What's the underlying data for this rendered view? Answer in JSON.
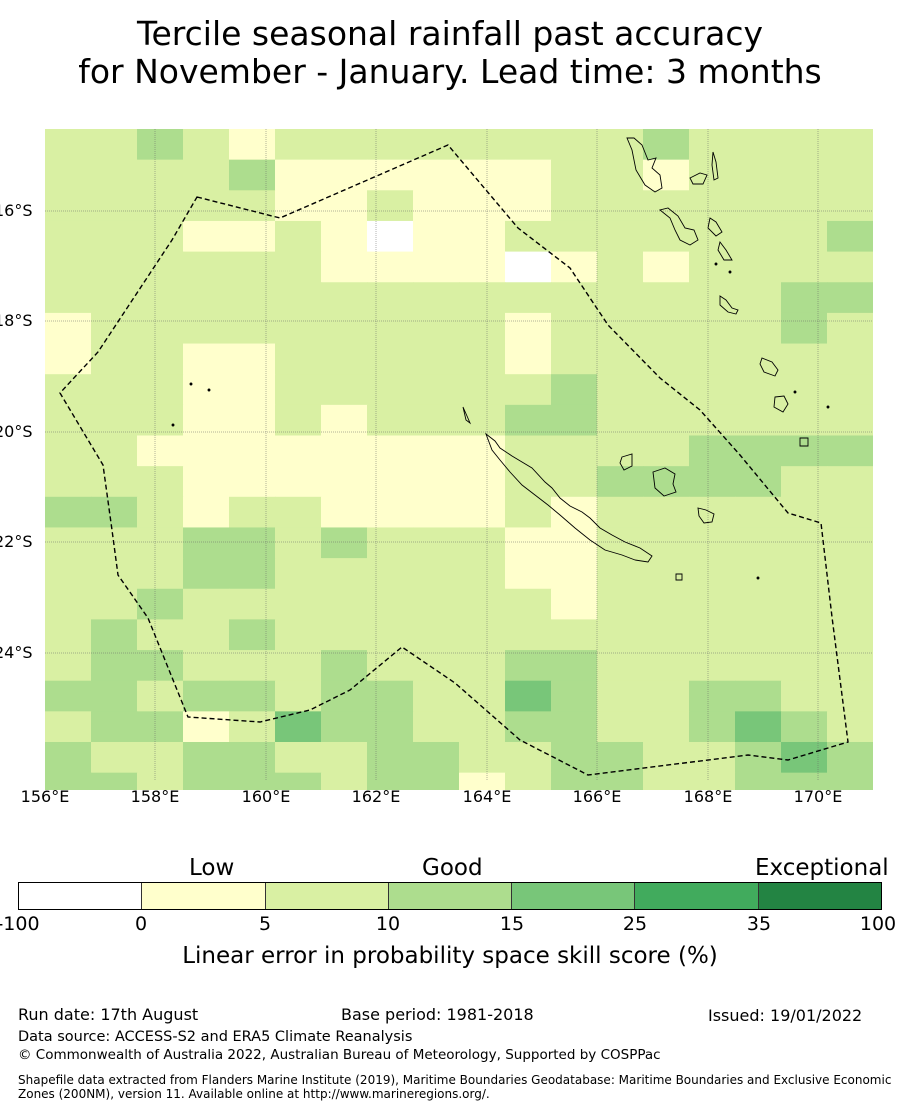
{
  "title": {
    "line1": "Tercile seasonal rainfall past accuracy",
    "line2": "for November - January. Lead time: 3 months"
  },
  "map": {
    "lat_labels": [
      "16°S",
      "18°S",
      "20°S",
      "22°S",
      "24°S"
    ],
    "lon_labels": [
      "156°E",
      "158°E",
      "160°E",
      "162°E",
      "164°E",
      "166°E",
      "168°E",
      "170°E"
    ],
    "colors": {
      "neg": "#ffffff",
      "c0_5": "#ffffcc",
      "c5_10": "#d9f0a3",
      "c10_15": "#addd8e",
      "c15_25": "#78c679",
      "c25_35": "#41ab5d",
      "c35_100": "#238443",
      "land": "#000000",
      "boundary": "#000000"
    }
  },
  "legend": {
    "categories": [
      "Low",
      "Good",
      "Exceptional"
    ],
    "ticks": [
      "-100",
      "0",
      "5",
      "10",
      "15",
      "25",
      "35",
      "100"
    ],
    "label": "Linear error in probability space skill score (%)",
    "bin_colors": [
      "#ffffff",
      "#ffffcc",
      "#d9f0a3",
      "#addd8e",
      "#78c679",
      "#41ab5d",
      "#238443"
    ]
  },
  "footer": {
    "run_date": "Run date: 17th August",
    "base_period": "Base period: 1981-2018",
    "issued": "Issued: 19/01/2022",
    "data_source": "Data source: ACCESS-S2 and ERA5 Climate Reanalysis",
    "copyright": "© Commonwealth of Australia 2022, Australian Bureau of Meteorology, Supported by COSPPac",
    "shapefile_line1": "Shapefile data extracted from Flanders Marine Institute (2019), Maritime Boundaries Geodatabase: Maritime Boundaries and Exclusive Economic",
    "shapefile_line2": "Zones (200NM), version 11. Available online at http://www.marineregions.org/."
  }
}
